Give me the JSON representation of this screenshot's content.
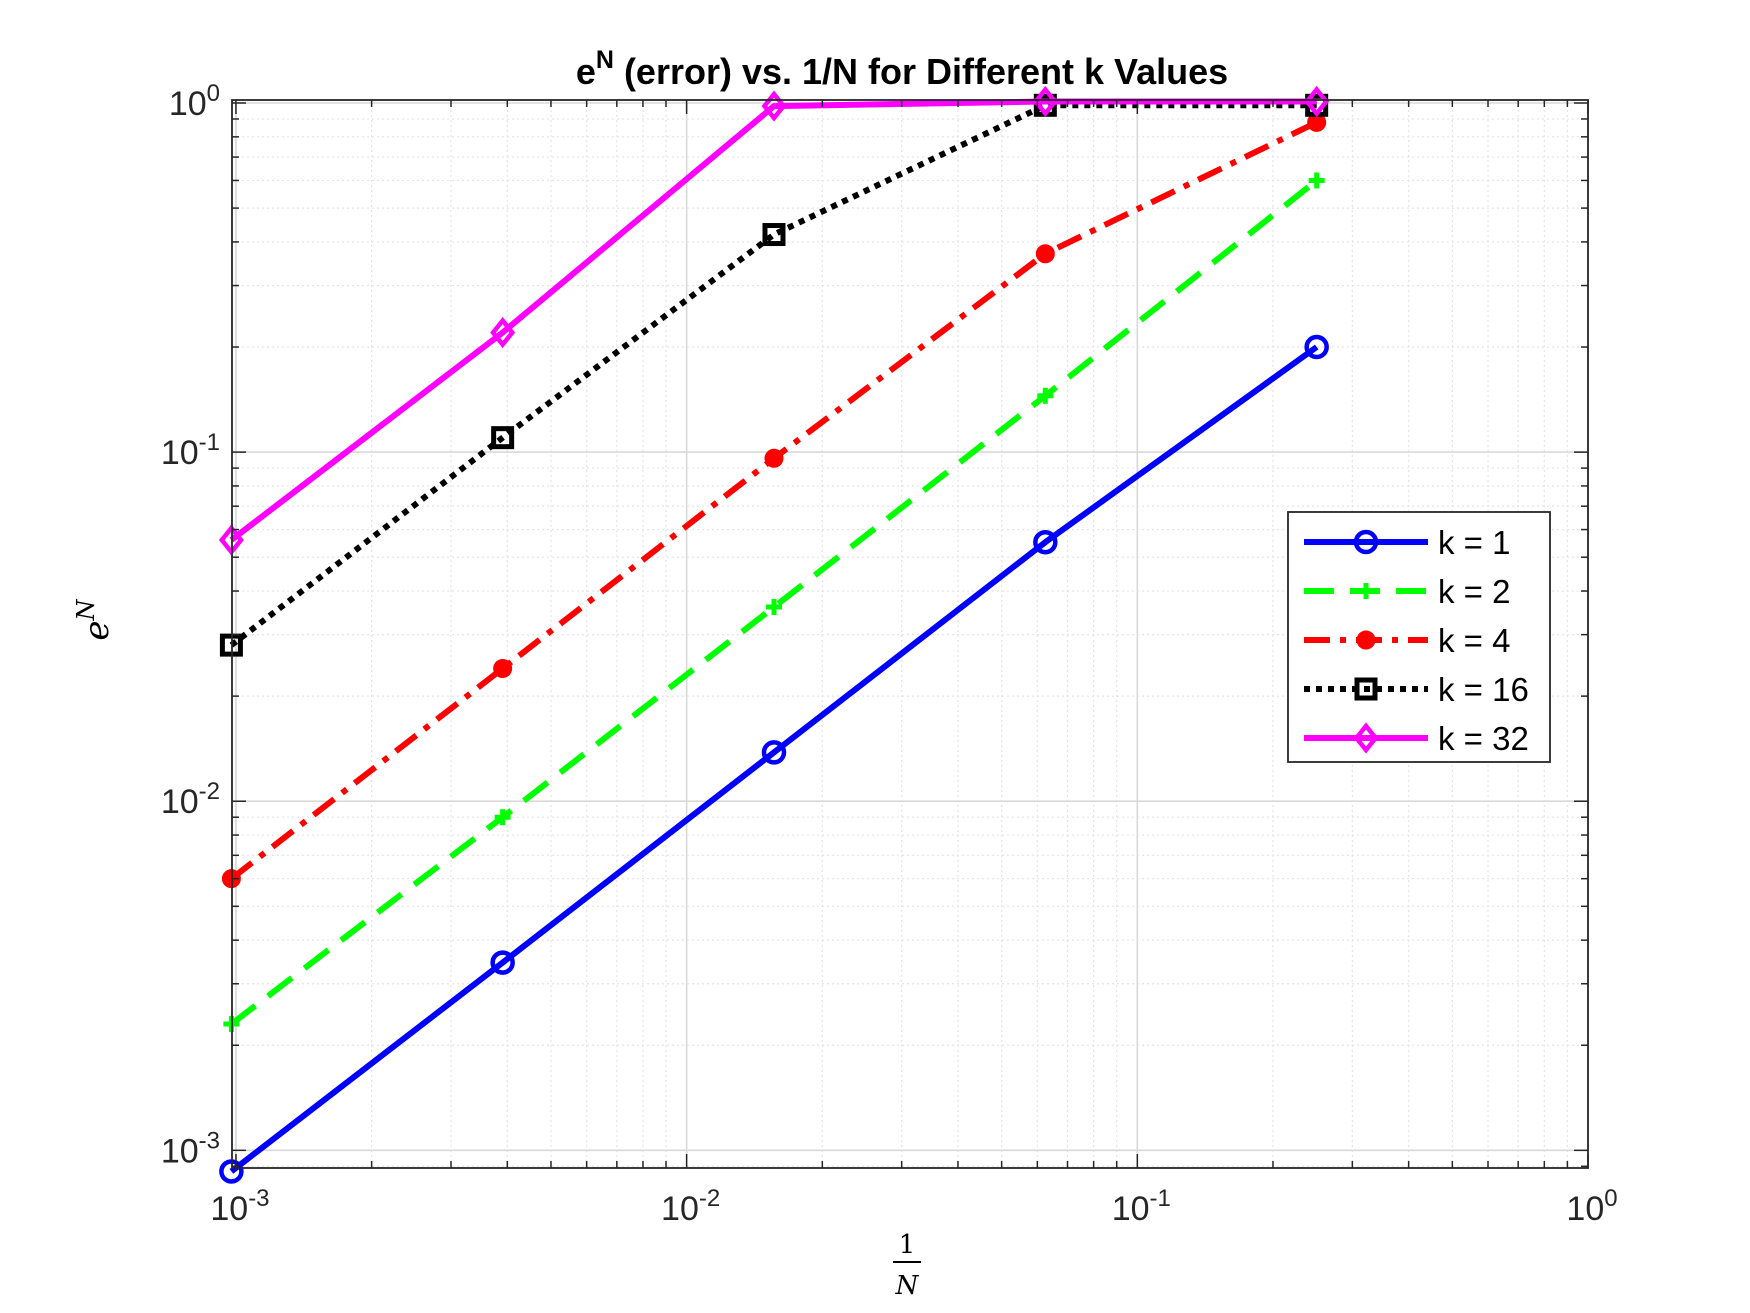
{
  "chart_data": {
    "type": "line",
    "title": "e^N (error) vs. 1/N for Different k Values",
    "title_parts": {
      "base": "e",
      "sup": "N",
      "rest": " (error) vs. 1/N for Different k Values"
    },
    "xlabel": {
      "num": "1",
      "den": "N"
    },
    "ylabel": {
      "base": "e",
      "sup": "N"
    },
    "x_scale": "log",
    "y_scale": "log",
    "xlim": [
      0.00098,
      1
    ],
    "ylim": [
      0.00089,
      1.02
    ],
    "grid": true,
    "minor_grid": true,
    "legend_position": "right",
    "x_ticks": [
      {
        "value": 0.001,
        "base": "10",
        "exp": "-3"
      },
      {
        "value": 0.01,
        "base": "10",
        "exp": "-2"
      },
      {
        "value": 0.1,
        "base": "10",
        "exp": "-1"
      },
      {
        "value": 1,
        "base": "10",
        "exp": "0"
      }
    ],
    "y_ticks": [
      {
        "value": 0.001,
        "base": "10",
        "exp": "-3"
      },
      {
        "value": 0.01,
        "base": "10",
        "exp": "-2"
      },
      {
        "value": 0.1,
        "base": "10",
        "exp": "-1"
      },
      {
        "value": 1,
        "base": "10",
        "exp": "0"
      }
    ],
    "x": [
      0.000977,
      0.003906,
      0.015625,
      0.0625,
      0.25
    ],
    "series": [
      {
        "name": "k = 1",
        "color": "#0000ff",
        "dash": "solid",
        "marker": "circle",
        "values": [
          0.00087,
          0.00345,
          0.0138,
          0.0552,
          0.2
        ]
      },
      {
        "name": "k = 2",
        "color": "#00ff00",
        "dash": "dashed",
        "marker": "plus",
        "values": [
          0.0023,
          0.009,
          0.036,
          0.145,
          0.6
        ]
      },
      {
        "name": "k = 4",
        "color": "#ff0000",
        "dash": "dashdot",
        "marker": "dot",
        "values": [
          0.006,
          0.024,
          0.096,
          0.37,
          0.88
        ]
      },
      {
        "name": "k = 16",
        "color": "#000000",
        "dash": "dotted",
        "marker": "square",
        "values": [
          0.028,
          0.11,
          0.42,
          0.985,
          0.985
        ]
      },
      {
        "name": "k = 32",
        "color": "#ff00ff",
        "dash": "solid",
        "marker": "diamond",
        "values": [
          0.056,
          0.22,
          0.98,
          1.01,
          1.01
        ]
      }
    ]
  }
}
